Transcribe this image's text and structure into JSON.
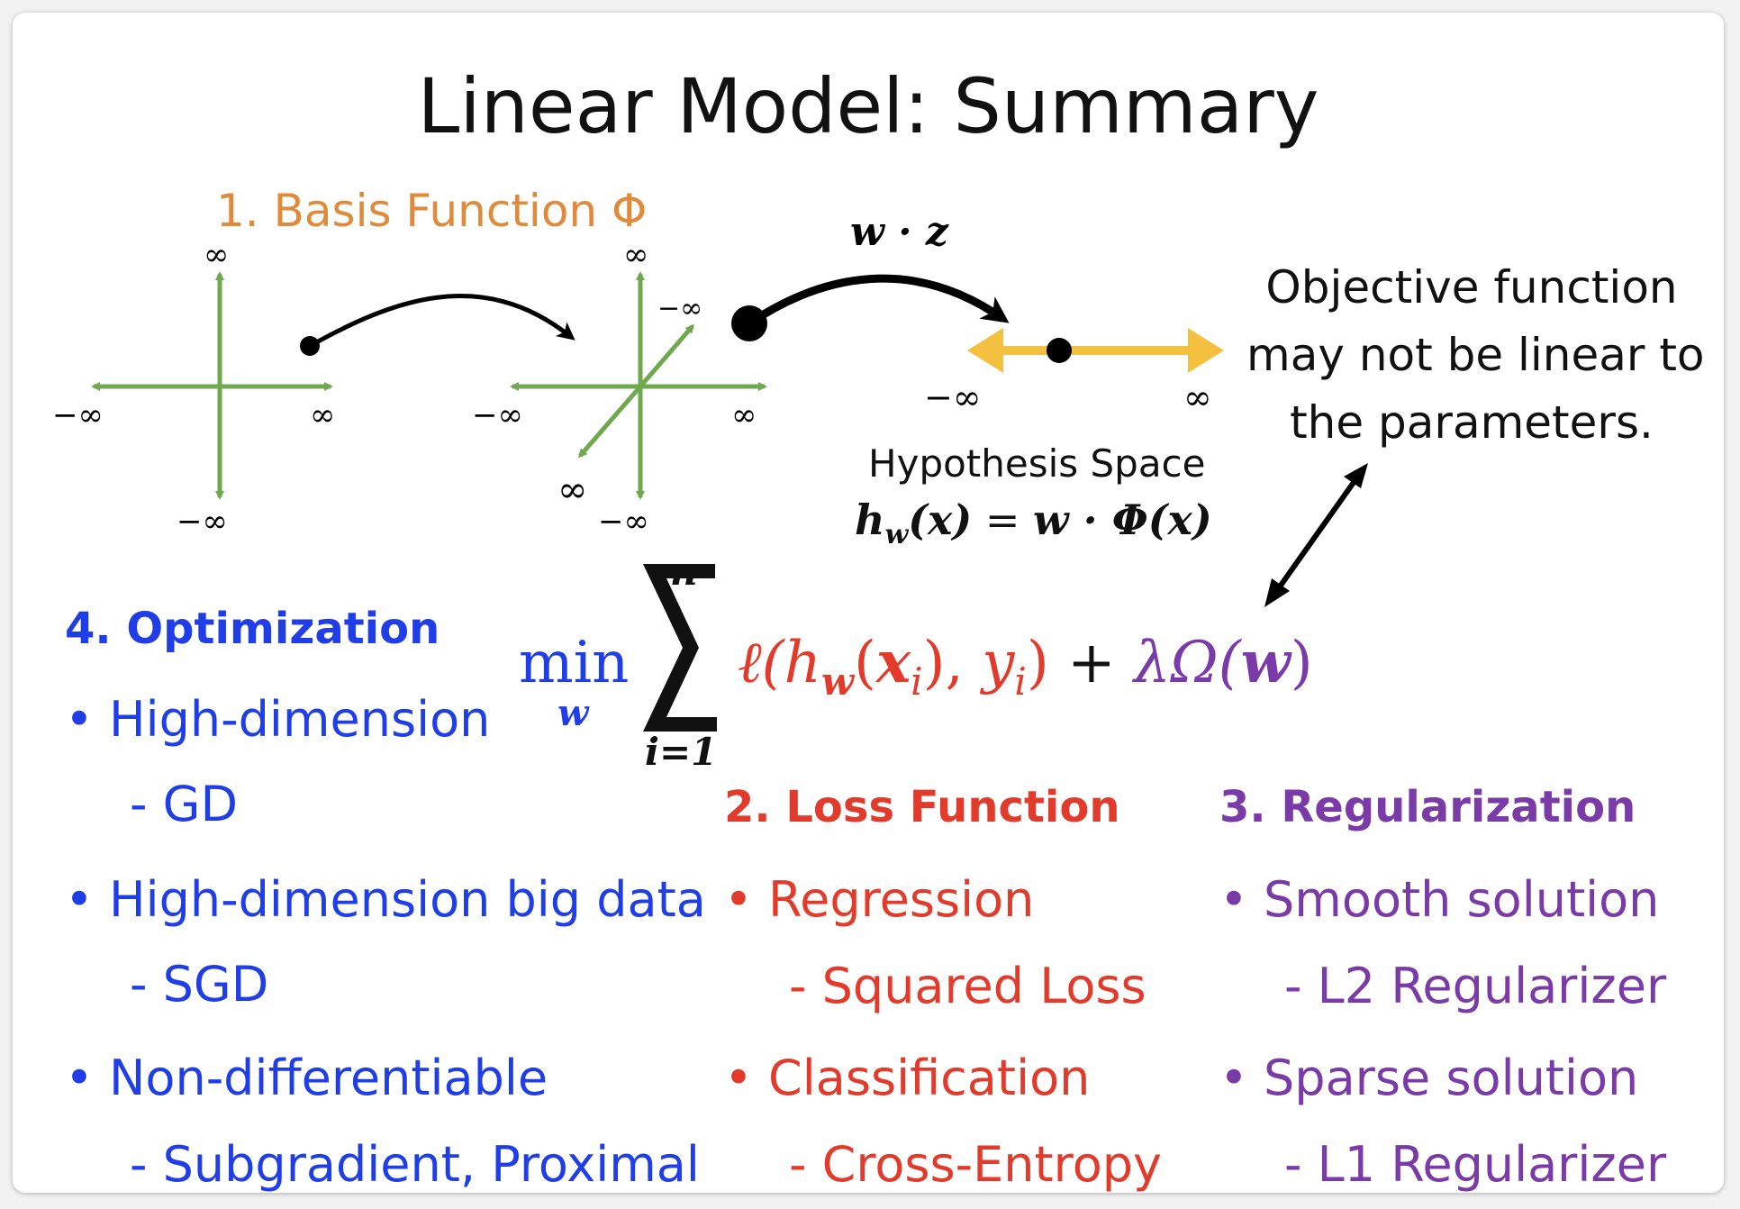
{
  "title": "Linear Model: Summary",
  "basis": {
    "label": "1. Basis Function Φ",
    "color": "#e08a3c"
  },
  "axes_labels": {
    "inf": "∞",
    "neg_inf": "−∞"
  },
  "mapping_label": "w · z",
  "hypothesis": {
    "label": "Hypothesis Space",
    "formula": "h_w(x) = w · Φ(x)",
    "hw": "h",
    "sub": "w",
    "x": "(x)",
    "eq": " = ",
    "rhs_w": "w",
    "rhs": " · Φ(x)"
  },
  "objective_note": {
    "line1": "Objective function",
    "line2": "may not be linear to",
    "line3": "the parameters."
  },
  "formula": {
    "min": "min",
    "min_sub": "w",
    "sum_top": "n",
    "sum_bottom": "i=1",
    "loss": "ℓ(h",
    "loss_sub": "w",
    "loss_rest": "(x",
    "loss_i": "i",
    "loss_rest2": "), y",
    "loss_i2": "i",
    "loss_end": ")",
    "plus": " + ",
    "reg": "λΩ(",
    "reg_w": "w",
    "reg_end": ")"
  },
  "optimization": {
    "heading": "4. Optimization",
    "items": [
      {
        "bullet": "High-dimension",
        "sub": "GD"
      },
      {
        "bullet": "High-dimension big data",
        "sub": "SGD"
      },
      {
        "bullet": "Non-differentiable",
        "sub": "Subgradient, Proximal"
      }
    ]
  },
  "loss_function": {
    "heading": "2. Loss Function",
    "items": [
      {
        "bullet": "Regression",
        "sub": "Squared Loss"
      },
      {
        "bullet": "Classification",
        "sub": "Cross-Entropy"
      }
    ]
  },
  "regularization": {
    "heading": "3. Regularization",
    "items": [
      {
        "bullet": "Smooth solution",
        "sub": "L2 Regularizer"
      },
      {
        "bullet": "Sparse solution",
        "sub": "L1 Regularizer"
      }
    ]
  },
  "colors": {
    "green_axes": "#6fa84f",
    "yellow_line": "#f4c040",
    "blue": "#1f3ee8",
    "red": "#e23a2b",
    "purple": "#7a3aa8",
    "orange": "#e08a3c"
  }
}
